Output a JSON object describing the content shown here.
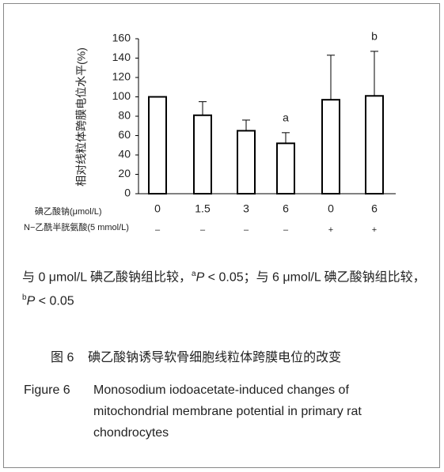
{
  "chart_data": {
    "type": "bar",
    "y_label": "相对线粒体跨膜电位水平(%)",
    "row1_label": "碘乙酸钠(μmol/L)",
    "categories": [
      "0",
      "1.5",
      "3",
      "6",
      "0",
      "6"
    ],
    "row2_label": "N−乙酰半胱氨酸(5 mmol/L)",
    "row2": [
      "–",
      "–",
      "–",
      "–",
      "+",
      "+"
    ],
    "values": [
      100,
      81,
      65,
      52,
      97,
      101
    ],
    "errors": [
      null,
      14,
      11,
      11,
      46,
      46
    ],
    "value_annotations": [
      null,
      null,
      null,
      "a",
      null,
      "b"
    ],
    "color": "#ffffff",
    "ylim": [
      0,
      160
    ],
    "yticks": [
      0,
      20,
      40,
      60,
      80,
      100,
      120,
      140,
      160
    ]
  },
  "note": [
    "与 0 μmol/L 碘乙酸钠组比较，",
    "a",
    "P",
    " < 0.05；与 6 μmol/L 碘乙酸钠组比较，",
    "b",
    "P",
    " < 0.05"
  ],
  "caption": {
    "cn_label": "图 6",
    "cn_text": "碘乙酸钠诱导软骨细胞线粒体跨膜电位的改变",
    "en_label": "Figure 6",
    "en_text": "Monosodium iodoacetate-induced changes of mitochondrial membrane potential in primary rat chondrocytes"
  }
}
